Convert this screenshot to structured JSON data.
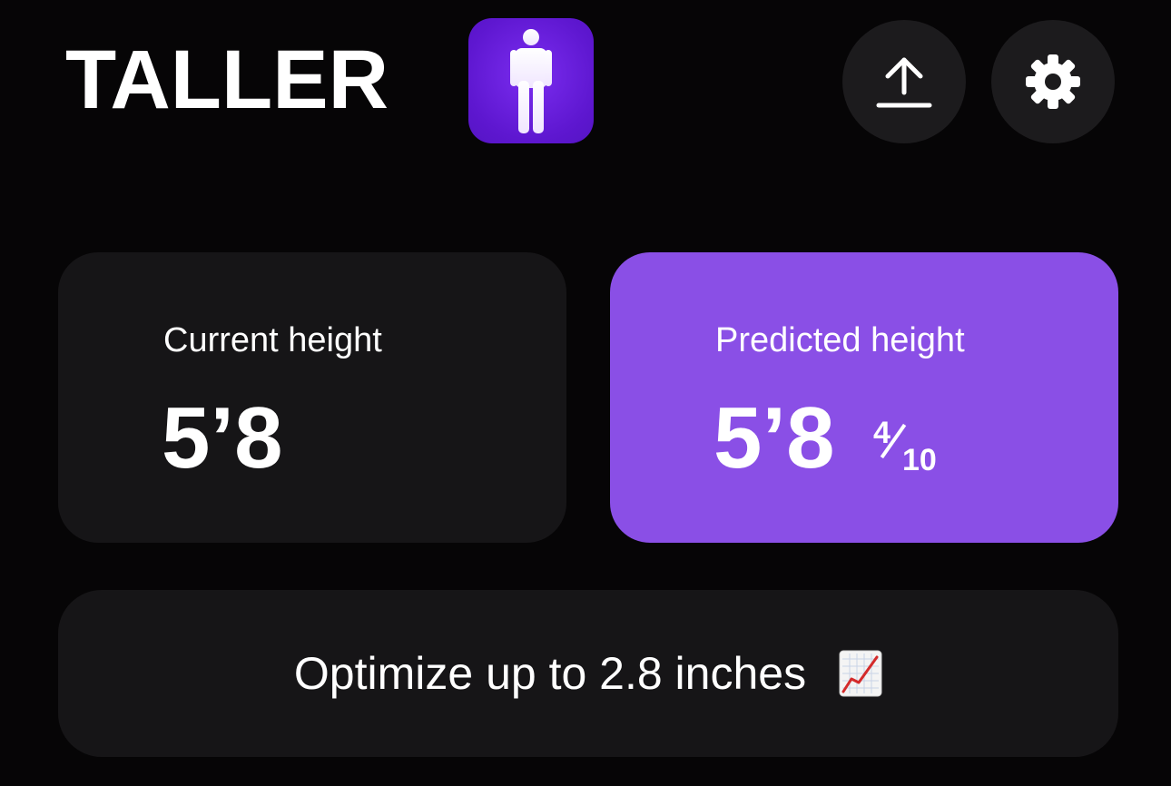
{
  "header": {
    "brand_title": "TALLER",
    "logo_icon": "standing-person-icon",
    "upload_icon": "upload-icon",
    "settings_icon": "gear-icon"
  },
  "cards": {
    "current": {
      "label": "Current height",
      "value": "5’8"
    },
    "predicted": {
      "label": "Predicted height",
      "value": "5’8",
      "fraction_numerator": "4",
      "fraction_denominator": "10"
    }
  },
  "banner": {
    "text": "Optimize up to 2.8 inches",
    "icon": "chart-increasing-icon"
  },
  "colors": {
    "background": "#060506",
    "card_dark": "#161517",
    "accent_purple": "#8a4fe6",
    "logo_purple": "#5e17d0",
    "icon_button": "#1c1b1d"
  }
}
